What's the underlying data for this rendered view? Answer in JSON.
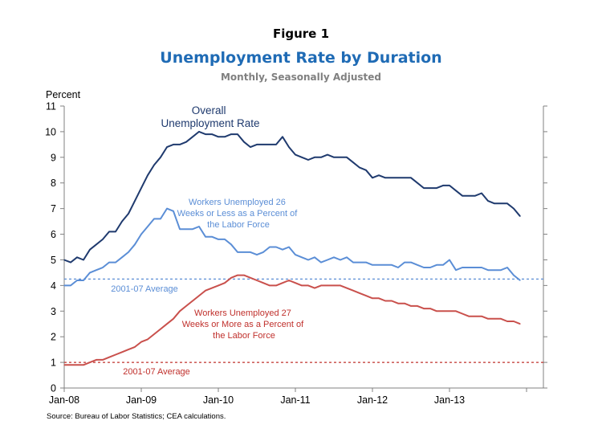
{
  "figure_label": "Figure 1",
  "chart_data": {
    "type": "line",
    "title": "Unemployment Rate by Duration",
    "subtitle": "Monthly, Seasonally Adjusted",
    "ylabel": "Percent",
    "xlabel": "",
    "ylim": [
      0,
      11
    ],
    "y_ticks": [
      "0",
      "1",
      "2",
      "3",
      "4",
      "5",
      "6",
      "7",
      "8",
      "9",
      "10",
      "11"
    ],
    "x_ticks": [
      "Jan-08",
      "Jan-09",
      "Jan-10",
      "Jan-11",
      "Jan-12",
      "Jan-13"
    ],
    "grid": false,
    "start": "Jan-08",
    "series": [
      {
        "name": "Overall Unemployment Rate",
        "color": "#1f3a6e",
        "values": [
          5.0,
          4.9,
          5.1,
          5.0,
          5.4,
          5.6,
          5.8,
          6.1,
          6.1,
          6.5,
          6.8,
          7.3,
          7.8,
          8.3,
          8.7,
          9.0,
          9.4,
          9.5,
          9.5,
          9.6,
          9.8,
          10.0,
          9.9,
          9.9,
          9.8,
          9.8,
          9.9,
          9.9,
          9.6,
          9.4,
          9.5,
          9.5,
          9.5,
          9.5,
          9.8,
          9.4,
          9.1,
          9.0,
          8.9,
          9.0,
          9.0,
          9.1,
          9.0,
          9.0,
          9.0,
          8.8,
          8.6,
          8.5,
          8.2,
          8.3,
          8.2,
          8.2,
          8.2,
          8.2,
          8.2,
          8.0,
          7.8,
          7.8,
          7.8,
          7.9,
          7.9,
          7.7,
          7.5,
          7.5,
          7.5,
          7.6,
          7.3,
          7.2,
          7.2,
          7.2,
          7.0,
          6.7
        ]
      },
      {
        "name": "Workers Unemployed 26 Weeks or Less as a Percent of the Labor Force",
        "color": "#5b8ed6",
        "values": [
          4.0,
          4.0,
          4.2,
          4.2,
          4.5,
          4.6,
          4.7,
          4.9,
          4.9,
          5.1,
          5.3,
          5.6,
          6.0,
          6.3,
          6.6,
          6.6,
          7.0,
          6.9,
          6.2,
          6.2,
          6.2,
          6.3,
          5.9,
          5.9,
          5.8,
          5.8,
          5.6,
          5.3,
          5.3,
          5.3,
          5.2,
          5.3,
          5.5,
          5.5,
          5.4,
          5.5,
          5.2,
          5.1,
          5.0,
          5.1,
          4.9,
          5.0,
          5.1,
          5.0,
          5.1,
          4.9,
          4.9,
          4.9,
          4.8,
          4.8,
          4.8,
          4.8,
          4.7,
          4.9,
          4.9,
          4.8,
          4.7,
          4.7,
          4.8,
          4.8,
          5.0,
          4.6,
          4.7,
          4.7,
          4.7,
          4.7,
          4.6,
          4.6,
          4.6,
          4.7,
          4.4,
          4.2
        ]
      },
      {
        "name": "Workers Unemployed 27 Weeks or More as a Percent of the Labor Force",
        "color": "#c9504c",
        "values": [
          0.9,
          0.9,
          0.9,
          0.9,
          1.0,
          1.1,
          1.1,
          1.2,
          1.3,
          1.4,
          1.5,
          1.6,
          1.8,
          1.9,
          2.1,
          2.3,
          2.5,
          2.7,
          3.0,
          3.2,
          3.4,
          3.6,
          3.8,
          3.9,
          4.0,
          4.1,
          4.3,
          4.4,
          4.4,
          4.3,
          4.2,
          4.1,
          4.0,
          4.0,
          4.1,
          4.2,
          4.1,
          4.0,
          4.0,
          3.9,
          4.0,
          4.0,
          4.0,
          4.0,
          3.9,
          3.8,
          3.7,
          3.6,
          3.5,
          3.5,
          3.4,
          3.4,
          3.3,
          3.3,
          3.2,
          3.2,
          3.1,
          3.1,
          3.0,
          3.0,
          3.0,
          3.0,
          2.9,
          2.8,
          2.8,
          2.8,
          2.7,
          2.7,
          2.7,
          2.6,
          2.6,
          2.5
        ]
      }
    ],
    "reference_lines": [
      {
        "name": "2001-07 Average",
        "value": 4.25,
        "color": "#5b8ed6",
        "style": "dashed"
      },
      {
        "name": "2001-07 Average",
        "value": 1.0,
        "color": "#c0302c",
        "style": "dashed"
      }
    ],
    "annotations": {
      "overall": [
        "Overall",
        "Unemployment Rate"
      ],
      "short_term": [
        "Workers Unemployed 26",
        "Weeks or Less as a Percent of",
        "the Labor Force"
      ],
      "long_term": [
        "Workers Unemployed 27",
        "Weeks or More as a Percent of",
        "the Labor Force"
      ],
      "avg_short": "2001-07 Average",
      "avg_long": "2001-07 Average"
    }
  },
  "source": "Source: Bureau of Labor Statistics; CEA calculations."
}
